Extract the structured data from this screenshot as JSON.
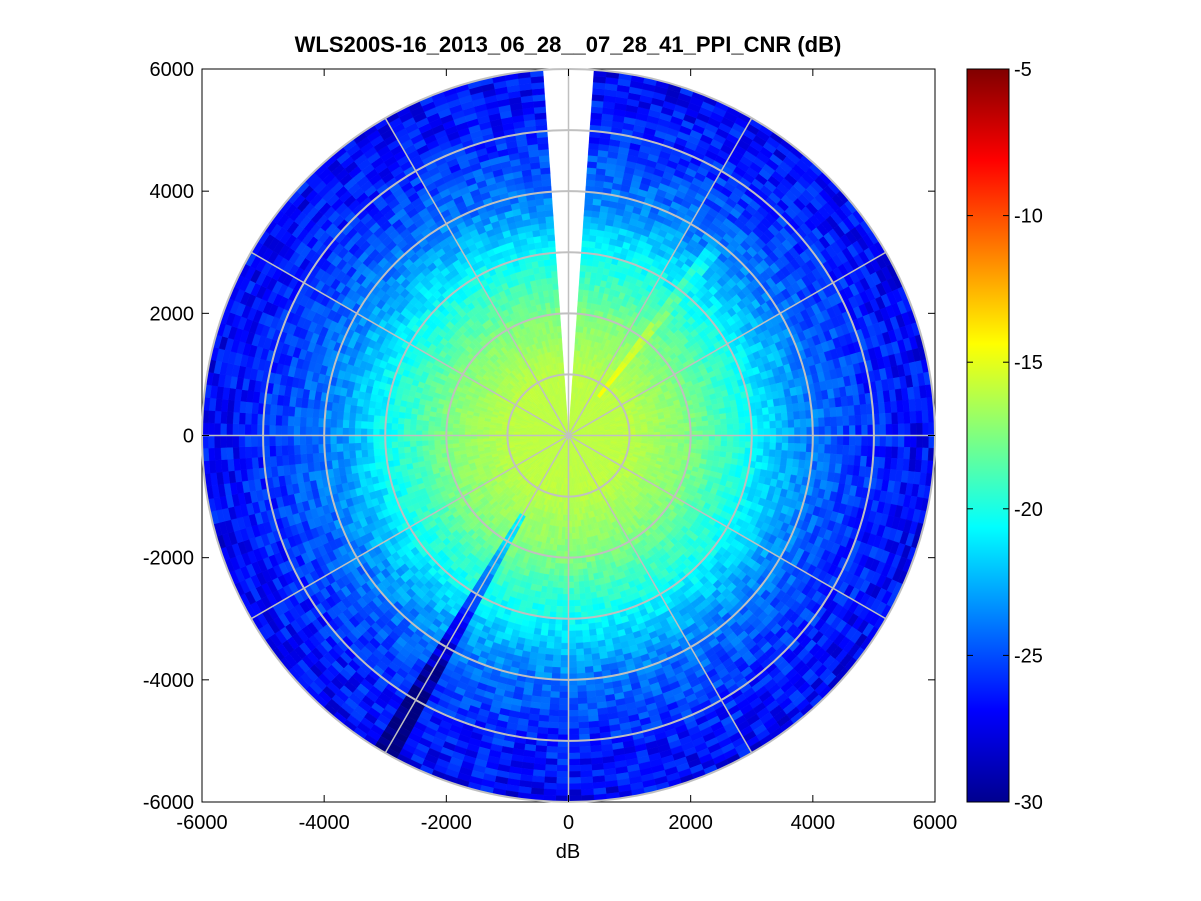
{
  "chart_data": {
    "type": "heatmap",
    "subtype": "polar-ppi",
    "title": "WLS200S-16_2013_06_28__07_28_41_PPI_CNR (dB)",
    "xlabel": "dB",
    "ylabel": "",
    "xlim": [
      -6000,
      6000
    ],
    "ylim": [
      -6000,
      6000
    ],
    "x_ticks": [
      -6000,
      -4000,
      -2000,
      0,
      2000,
      4000,
      6000
    ],
    "y_ticks": [
      6000,
      4000,
      2000,
      0,
      -2000,
      -4000,
      -6000
    ],
    "max_range": 6000,
    "range_rings": [
      1000,
      2000,
      3000,
      4000,
      5000,
      6000
    ],
    "spokes_deg": [
      0,
      30,
      60,
      90,
      120,
      150,
      180,
      210,
      240,
      270,
      300,
      330
    ],
    "grid": true,
    "colormap": "jet",
    "colorbar": {
      "min": -30,
      "max": -5,
      "ticks": [
        -5,
        -10,
        -15,
        -20,
        -25,
        -30
      ],
      "position": "right"
    },
    "cnr_profile_db": [
      {
        "range": 0,
        "value": -16
      },
      {
        "range": 1000,
        "value": -16
      },
      {
        "range": 2000,
        "value": -17.5
      },
      {
        "range": 3000,
        "value": -20.5
      },
      {
        "range": 4000,
        "value": -24
      },
      {
        "range": 5000,
        "value": -26
      },
      {
        "range": 6000,
        "value": -27
      }
    ],
    "blanked_sector_deg": [
      -4,
      4
    ],
    "low_cnr_beam_deg": 210
  }
}
